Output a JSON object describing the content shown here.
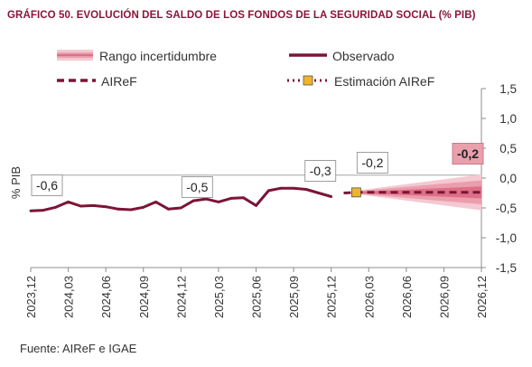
{
  "title": "GRÁFICO 50.  EVOLUCIÓN DEL SALDO DE LOS FONDOS DE LA SEGURIDAD SOCIAL (% PIB)",
  "source": "Fuente: AIReF e IGAE",
  "colors": {
    "observed": "#7b1535",
    "band_outer": "#f4c9d1",
    "band_mid": "#eb9eae",
    "band_inner": "#dd6f86",
    "estimate_marker": "#f0b429",
    "highlight_box": "#e9a0ac"
  },
  "chart_data": {
    "type": "line",
    "ylabel": "% PIB",
    "ylim": [
      -1.5,
      1.5
    ],
    "yticks": [
      "1,5",
      "1,0",
      "0,5",
      "0,0",
      "-0,5",
      "-1,0",
      "-1,5"
    ],
    "ytick_values": [
      1.5,
      1.0,
      0.5,
      0.0,
      -0.5,
      -1.0,
      -1.5
    ],
    "xticks": [
      "2023,12",
      "2024,03",
      "2024,06",
      "2024,09",
      "2024,12",
      "2025,03",
      "2025,06",
      "2025,09",
      "2025,12",
      "2026,03",
      "2026,06",
      "2026,09",
      "2026,12"
    ],
    "legend": [
      {
        "key": "band",
        "label": "Rango  incertidumbre"
      },
      {
        "key": "observed",
        "label": "Observado"
      },
      {
        "key": "airef",
        "label": "AIReF"
      },
      {
        "key": "estimate",
        "label": "Estimación AIReF"
      }
    ],
    "series": [
      {
        "name": "Observado",
        "x": [
          "2023,12",
          "2024,01",
          "2024,02",
          "2024,03",
          "2024,04",
          "2024,05",
          "2024,06",
          "2024,07",
          "2024,08",
          "2024,09",
          "2024,10",
          "2024,11",
          "2024,12",
          "2025,01",
          "2025,02",
          "2025,03",
          "2025,04",
          "2025,05",
          "2025,06",
          "2025,07",
          "2025,08",
          "2025,09",
          "2025,10",
          "2025,11",
          "2025,12"
        ],
        "values": [
          -0.55,
          -0.54,
          -0.49,
          -0.4,
          -0.47,
          -0.46,
          -0.48,
          -0.52,
          -0.53,
          -0.49,
          -0.4,
          -0.52,
          -0.5,
          -0.38,
          -0.35,
          -0.4,
          -0.34,
          -0.33,
          -0.46,
          -0.21,
          -0.17,
          -0.17,
          -0.19,
          -0.25,
          -0.31
        ]
      },
      {
        "name": "AIReF",
        "x": [
          "2026,01",
          "2026,02",
          "2026,03",
          "2026,04",
          "2026,05",
          "2026,06",
          "2026,07",
          "2026,08",
          "2026,09",
          "2026,10",
          "2026,11",
          "2026,12"
        ],
        "values": [
          -0.25,
          -0.24,
          -0.24,
          -0.24,
          -0.24,
          -0.24,
          -0.24,
          -0.24,
          -0.24,
          -0.24,
          -0.24,
          -0.24
        ]
      },
      {
        "name": "Estimación AIReF",
        "x": [
          "2026,02"
        ],
        "values": [
          -0.24
        ]
      }
    ],
    "uncertainty_band": {
      "x_start": "2026,02",
      "x_end": "2026,12",
      "inner_halfwidth": [
        0.01,
        0.1
      ],
      "mid_halfwidth": [
        0.02,
        0.2
      ],
      "outer_halfwidth": [
        0.03,
        0.3
      ]
    },
    "reference_line": {
      "value": 0.05
    },
    "annotations": [
      {
        "label": "-0,6",
        "x": "2023,12"
      },
      {
        "label": "-0,5",
        "x": "2024,12"
      },
      {
        "label": "-0,3",
        "x": "2025,12"
      },
      {
        "label": "-0,2",
        "x": "2026,02"
      },
      {
        "label": "-0,2",
        "x": "2026,12",
        "highlight": true
      }
    ]
  }
}
